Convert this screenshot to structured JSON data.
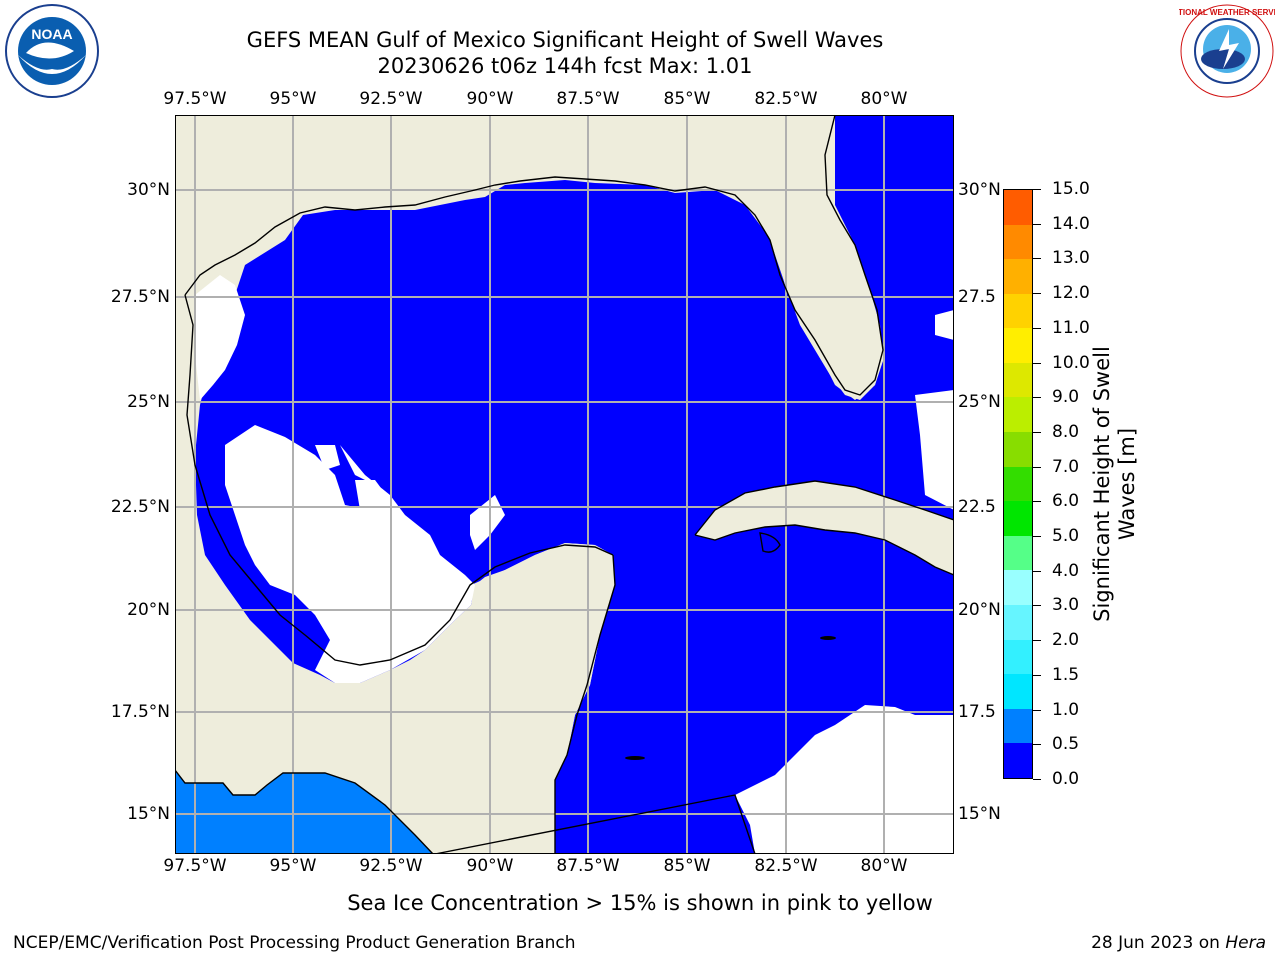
{
  "header": {
    "title_line1": "GEFS MEAN Gulf of Mexico Significant Height of Swell Waves",
    "title_line2": "20230626 t06z 144h fcst   Max: 1.01"
  },
  "map": {
    "lon_labels": [
      "97.5°W",
      "95°W",
      "92.5°W",
      "90°W",
      "87.5°W",
      "85°W",
      "82.5°W",
      "80°W"
    ],
    "lat_labels": [
      "30°N",
      "27.5°N",
      "25°N",
      "22.5°N",
      "20°N",
      "17.5°N",
      "15°N"
    ],
    "lat_labels_right": [
      "30°N",
      "27.5",
      "25°N",
      "22.5",
      "20°N",
      "17.5",
      "15°N"
    ],
    "colors": {
      "land": "#eeeddc",
      "ocean_swell": "#0000ff",
      "no_data": "#ffffff",
      "pacific_swell": "#0080ff",
      "grid": "#b0b0b0"
    }
  },
  "colorbar": {
    "label": "Significant Height of Swell Waves [m]",
    "label_line1": "Significant Height of Swell",
    "label_line2": "Waves [m]",
    "ticks": [
      "0.0",
      "0.5",
      "1.0",
      "1.5",
      "2.0",
      "3.0",
      "4.0",
      "5.0",
      "6.0",
      "7.0",
      "8.0",
      "9.0",
      "10.0",
      "11.0",
      "12.0",
      "13.0",
      "14.0",
      "15.0"
    ],
    "colors": [
      "#0000ff",
      "#0080ff",
      "#00e6ff",
      "#33f0ff",
      "#66f5ff",
      "#99ffff",
      "#55ff88",
      "#00e600",
      "#33dd00",
      "#88dd00",
      "#bbee00",
      "#dde800",
      "#ffee00",
      "#ffd200",
      "#ffb000",
      "#ff8a00",
      "#ff5c00",
      "#ff2800",
      "#ff0000"
    ]
  },
  "footer": {
    "note": "Sea Ice Concentration > 15% is shown in pink to yellow",
    "credit": "NCEP/EMC/Verification Post Processing Product Generation Branch",
    "date_prefix": "28 Jun 2023 on ",
    "date_machine": "Hera"
  },
  "logos": {
    "noaa": {
      "text": "NOAA",
      "icon": "noaa-logo"
    },
    "nws": {
      "text": "NATIONAL WEATHER SERVICE",
      "icon": "nws-logo"
    }
  }
}
